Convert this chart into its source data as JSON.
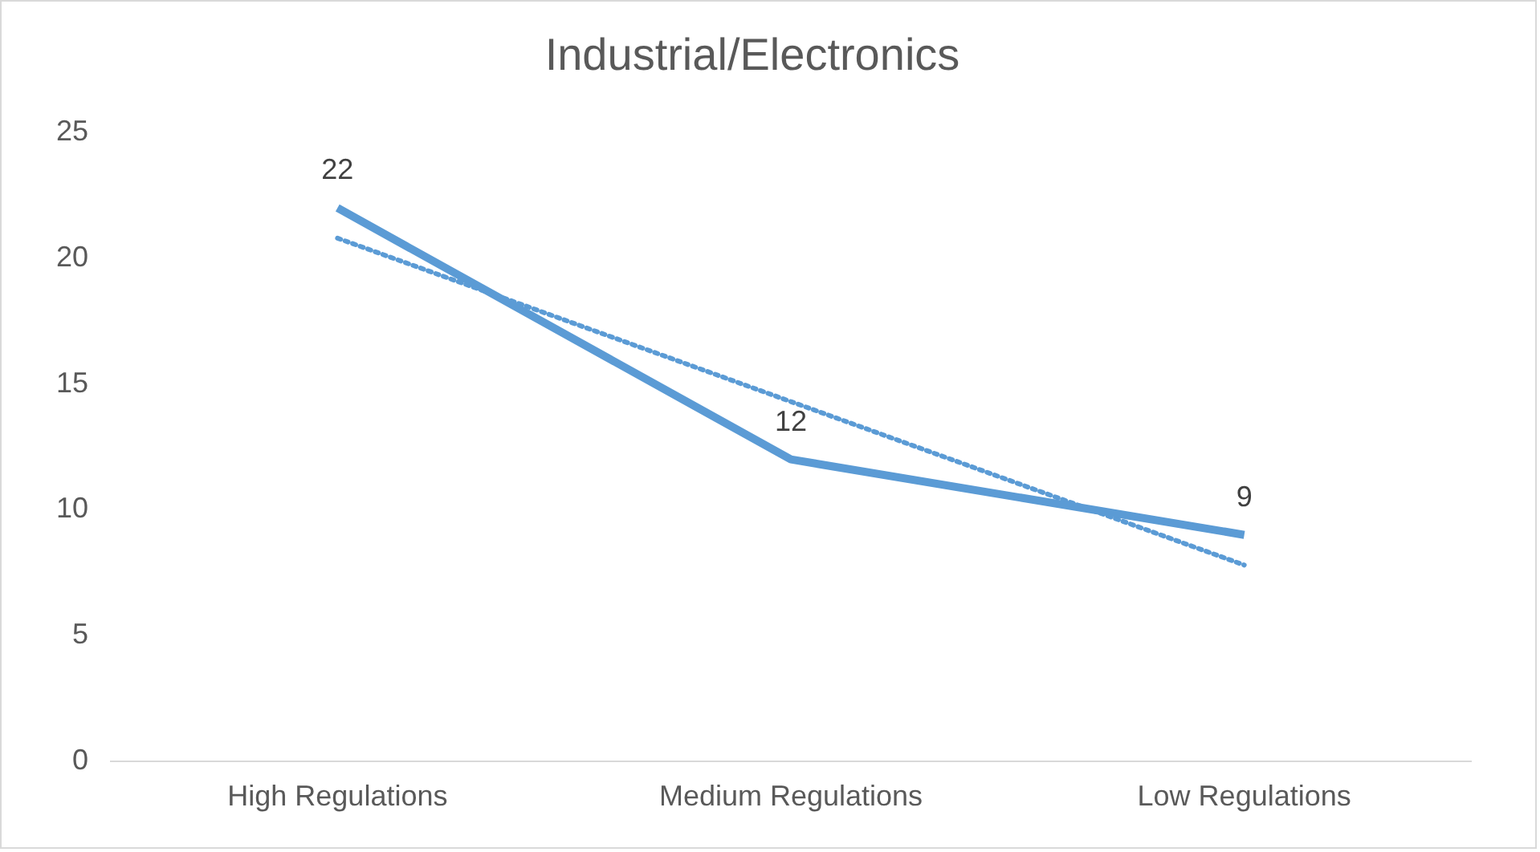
{
  "chart_data": {
    "type": "line",
    "title": "Industrial/Electronics",
    "categories": [
      "High Regulations",
      "Medium Regulations",
      "Low Regulations"
    ],
    "series": [
      {
        "color": "#5b9bd5",
        "values": [
          22,
          12,
          9
        ],
        "value_labels": [
          "22",
          "12",
          "9"
        ],
        "line_style": "solid"
      },
      {
        "type": "line",
        "color": "#5b9bd5",
        "x": [
          "High Regulations",
          "Medium Regulations",
          "Low Regulations"
        ],
        "values": [
          20.8,
          14.3,
          7.8
        ],
        "line_style": "dotted"
      }
    ],
    "ylim": [
      0,
      25
    ],
    "yticks": [
      0,
      5,
      10,
      15,
      20,
      25
    ],
    "grid": false,
    "legend": false,
    "marker": "none"
  }
}
